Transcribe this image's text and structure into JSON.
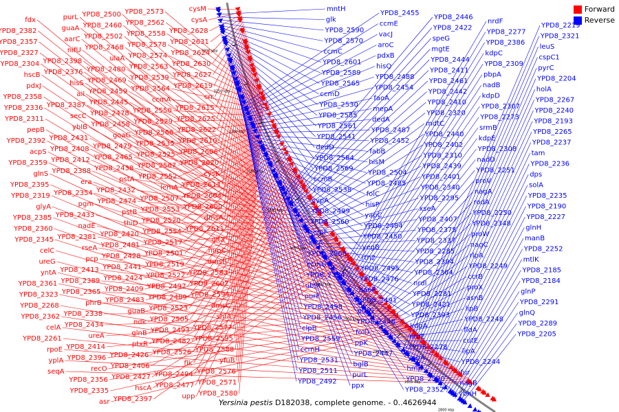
{
  "legend": {
    "forward_label": "Forward",
    "reverse_label": "Reverse",
    "forward_color": "#ff0000",
    "reverse_color": "#0000ff"
  },
  "caption": {
    "organism": "Yersinia pestis",
    "text": "D182038, complete genome. - 0..4626944"
  },
  "ticks": [
    "3300 kbp",
    "3250 kbp",
    "3200 kbp",
    "3150 kbp",
    "3100 kbp",
    "3050 kbp",
    "3000 kbp",
    "2950 kbp",
    "2900 kbp",
    "2850 kbp",
    "2800 kbp"
  ],
  "forward_labels": [
    "cysM",
    "cysA",
    "YPD8_2628",
    "YPD8_2631",
    "YPD8_2624",
    "YPD8_2630",
    "YPD8_2627",
    "YPD8_2619",
    "crr",
    "YPD8_2615",
    "YPD8_2625",
    "YPD8_2622",
    "YPD8_2610",
    "YPD8_2606",
    "YPD8_2620",
    "cysK",
    "YPD8_2613",
    "YPD8_2604",
    "YPD8_2600",
    "dmsA",
    "YPD8_2611",
    "gltX",
    "nupC",
    "dmsB",
    "YPD8_2583",
    "YPD8_2602",
    "YPD8_2594",
    "dmsC",
    "sfuA",
    "YPD8_2577",
    "YPD8_2595",
    "YPD8_2588",
    "yfuB",
    "YPD8_2576",
    "YPD8_2571",
    "YPD8_2580",
    "YPD8_2573",
    "YPD8_2562",
    "YPD8_2558",
    "YPD8_2578",
    "YPD8_2574",
    "YPD8_2563",
    "YPD8_2539",
    "YPD8_2564",
    "ccmA",
    "YPD8_2550",
    "YPD8_2529",
    "YPD8_2566",
    "YPD8_2535",
    "YPD8_2525",
    "YPD8_2567",
    "YPD8_2552",
    "lemA",
    "YPD8_2507",
    "YPD8_2553",
    "YPD8_2520",
    "YPD8_2554",
    "YPD8_2517",
    "YPD8_2501",
    "YPD8_2519",
    "YPD8_2522",
    "YPD8_2497",
    "YPD8_2489",
    "YPD8_2523",
    "YPD8_2505",
    "YPD8_2493",
    "YPD8_2482",
    "YPD8_2526",
    "flk",
    "YPD8_2494",
    "YPD8_2477",
    "upp",
    "YPD8_2500",
    "YPD8_2460",
    "YPD8_2502",
    "YPD8_2468",
    "ulaA",
    "YPD8_2480",
    "YPD8_2469",
    "YPD8_2459",
    "YPD8_2445",
    "YPD8_2478",
    "YPD8_2458",
    "goaG",
    "YPD8_2479",
    "YPD8_2465",
    "YPD8_2438",
    "pstA",
    "YPD8_2432",
    "YPD8_2474",
    "pstB",
    "thiD",
    "YPD8_2420",
    "YPD8_2481",
    "YPD8_2428",
    "YPD8_2441",
    "YPD8_2424",
    "YPD8_2409",
    "YPD8_2483",
    "guaB",
    "ndk",
    "glnB",
    "ptxR",
    "YPD8_2426",
    "YPD8_2406",
    "YPD8_2427",
    "hscA",
    "YPD8_2397",
    "purL",
    "guaA",
    "aarC",
    "nifU",
    "YPD8_2398",
    "YPD8_2376",
    "hisS",
    "ail",
    "YPD8_2387",
    "secC",
    "ybIB",
    "YPD8_2431",
    "YPD8_2408",
    "YPD8_2412",
    "YPD8_2388",
    "era",
    "YPD8_2354",
    "pgm",
    "YPD8_2433",
    "nadE",
    "YPD8_2381",
    "rseA",
    "pcp",
    "YPD8_2413",
    "YPD8_2389",
    "YPD8_2365",
    "phrB",
    "YPD8_2338",
    "YPD8_2434",
    "ureA",
    "YPD8_2414",
    "YPD8_2396",
    "recO",
    "YPD8_2356",
    "YPD8_2335",
    "asr",
    "fdx",
    "YPD8_2382",
    "YPD8_2357",
    "YPD8_2327",
    "YPD8_2304",
    "hscB",
    "pdxJ",
    "YPD8_2358",
    "YPD8_2336",
    "YPD8_2311",
    "pepB",
    "YPD8_2392",
    "acpS",
    "YPD8_2359",
    "glnS",
    "YPD8_2395",
    "YPD8_2319",
    "glyA",
    "YPD8_2385",
    "YPD8_2360",
    "YPD8_2345",
    "celC",
    "ureG",
    "yntA",
    "YPD8_2361",
    "YPD8_2323",
    "YPD8_2268",
    "YPD8_2362",
    "celA",
    "YPD8_2261",
    "rpoE",
    "yplA",
    "seqA"
  ],
  "reverse_labels": [
    "mntH",
    "glk",
    "YPD8_2590",
    "YPD8_2570",
    "ccmC",
    "YPD8_2601",
    "YPD8_2589",
    "YPD8_2565",
    "ccmD",
    "YPD8_2530",
    "YPD8_2585",
    "YPD8_2561",
    "YPD8_2541",
    "dedD",
    "YPD8_2584",
    "YPD8_2569",
    "ccmB",
    "YPD8_2538",
    "cvpA",
    "YPD8_2499",
    "YPD8_2560",
    "ccmF",
    "sixA",
    "YPD8_2568",
    "ccmG",
    "YPD8_2534",
    "ubiX",
    "purF",
    "YPD8_2498",
    "YPD8_2456",
    "clpB",
    "YPD8_2559",
    "ccmH",
    "YPD8_2531",
    "YPD8_2511",
    "YPD8_2492",
    "YPD8_2455",
    "ccmE",
    "vacJ",
    "aroC",
    "pdxB",
    "hisQ",
    "YPD8_2488",
    "YPD8_2454",
    "faoA",
    "mepA",
    "dedA",
    "YPD8_2487",
    "YPD8_2452",
    "fabB",
    "hisM",
    "YPD8_2504",
    "YPD8_2485",
    "folC",
    "hisP",
    "yapC",
    "YPD8_2484",
    "YPD8_2450",
    "yegB",
    "rtn2",
    "YPD8_2495",
    "YPD8_2476",
    "baeR",
    "YPD8_2491",
    "purN",
    "YPD8_2448",
    "folD",
    "ppK",
    "YPD8_2447",
    "bglB",
    "purL",
    "ppx",
    "YPD8_2446",
    "YPD8_2422",
    "speG",
    "mgtE",
    "YPD8_2444",
    "YPD8_2411",
    "YPD8_2461",
    "YPD8_2442",
    "YPD8_2410",
    "YPD8_2320",
    "mdtC",
    "YPD8_2440",
    "YPD8_2402",
    "YPD8_2310",
    "YPD8_2439",
    "YPD8_2401",
    "YPD8_2340",
    "YPD8_2295",
    "xseA",
    "YPD8_2407",
    "YPD8_2375",
    "YPD8_2337",
    "YPD8_2285",
    "YPD8_2394",
    "YPD8_2364",
    "nrdI",
    "YPD8_2281",
    "YPD8_2421",
    "YPD8_2393",
    "kdpA",
    "nrdE",
    "YPD8_2278",
    "yapA",
    "hmp",
    "YPD8_2390",
    "YPD8_2352",
    "nrdF",
    "YPD8_2277",
    "YPD8_2386",
    "kdpC",
    "YPD8_2309",
    "pbpA",
    "nadB",
    "kdpD",
    "YPD8_2307",
    "YPD8_2273",
    "srmB",
    "kdpE",
    "YPD8_2308",
    "nadD",
    "YPD8_2251",
    "proV",
    "nagA",
    "rodA",
    "YPD8_2250",
    "YPD8_2348",
    "proW",
    "nagC",
    "rlpA",
    "YPD8_2249",
    "ccrB",
    "proX",
    "asnB",
    "lipB",
    "YPD8_2248",
    "fldA",
    "cutE",
    "lipA",
    "YPD8_2244",
    "fur",
    "nagB",
    "ybhH",
    "YPD8_2219",
    "YPD8_2321",
    "leuS",
    "cspC1",
    "pyrC",
    "YPD8_2204",
    "holA",
    "YPD8_2267",
    "YPD8_2240",
    "YPD8_2193",
    "YPD8_2265",
    "YPD8_2237",
    "tam",
    "YPD8_2236",
    "dps",
    "solA",
    "YPD8_2235",
    "YPD8_2190",
    "YPD8_2227",
    "glnH",
    "manB",
    "YPD8_2252",
    "mtlK",
    "YPD8_2185",
    "YPD8_2184",
    "glnP",
    "YPD8_2291",
    "glnQ",
    "YPD8_2289",
    "YPD8_2205"
  ]
}
